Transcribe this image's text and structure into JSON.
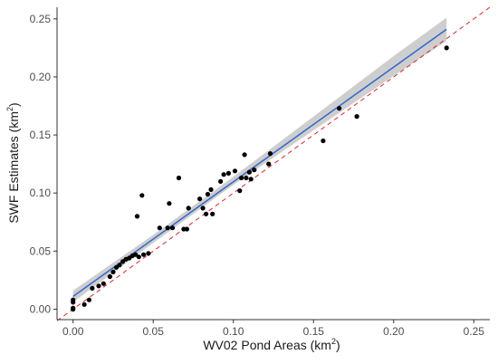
{
  "chart_data": {
    "type": "scatter",
    "xlabel": {
      "main": "WV02 Pond Areas (km",
      "sup": "2",
      "tail": ")"
    },
    "ylabel": {
      "main": "SWF Estimates (km",
      "sup": "2",
      "tail": ")"
    },
    "xlim": [
      -0.01,
      0.26
    ],
    "ylim": [
      -0.009,
      0.26
    ],
    "x_ticks": [
      0.0,
      0.05,
      0.1,
      0.15,
      0.2,
      0.25
    ],
    "x_tick_labels": [
      "0.00",
      "0.05",
      "0.10",
      "0.15",
      "0.20",
      "0.25"
    ],
    "y_ticks": [
      0.0,
      0.05,
      0.1,
      0.15,
      0.2,
      0.25
    ],
    "y_tick_labels": [
      "0.00",
      "0.05",
      "0.10",
      "0.15",
      "0.20",
      "0.25"
    ],
    "grid": false,
    "points": [
      [
        0.0,
        0.0
      ],
      [
        0.0,
        0.001
      ],
      [
        0.0,
        0.006
      ],
      [
        0.0,
        0.008
      ],
      [
        0.007,
        0.004
      ],
      [
        0.01,
        0.008
      ],
      [
        0.012,
        0.018
      ],
      [
        0.016,
        0.02
      ],
      [
        0.019,
        0.022
      ],
      [
        0.023,
        0.028
      ],
      [
        0.025,
        0.032
      ],
      [
        0.027,
        0.036
      ],
      [
        0.029,
        0.038
      ],
      [
        0.031,
        0.041
      ],
      [
        0.033,
        0.043
      ],
      [
        0.035,
        0.044
      ],
      [
        0.037,
        0.046
      ],
      [
        0.039,
        0.047
      ],
      [
        0.04,
        0.08
      ],
      [
        0.041,
        0.045
      ],
      [
        0.043,
        0.098
      ],
      [
        0.044,
        0.047
      ],
      [
        0.047,
        0.048
      ],
      [
        0.054,
        0.07
      ],
      [
        0.059,
        0.07
      ],
      [
        0.06,
        0.091
      ],
      [
        0.062,
        0.07
      ],
      [
        0.066,
        0.113
      ],
      [
        0.069,
        0.069
      ],
      [
        0.071,
        0.069
      ],
      [
        0.072,
        0.087
      ],
      [
        0.079,
        0.095
      ],
      [
        0.081,
        0.087
      ],
      [
        0.083,
        0.082
      ],
      [
        0.084,
        0.099
      ],
      [
        0.086,
        0.103
      ],
      [
        0.087,
        0.082
      ],
      [
        0.092,
        0.11
      ],
      [
        0.094,
        0.116
      ],
      [
        0.097,
        0.117
      ],
      [
        0.101,
        0.119
      ],
      [
        0.104,
        0.102
      ],
      [
        0.105,
        0.113
      ],
      [
        0.107,
        0.133
      ],
      [
        0.108,
        0.113
      ],
      [
        0.11,
        0.118
      ],
      [
        0.111,
        0.112
      ],
      [
        0.113,
        0.12
      ],
      [
        0.122,
        0.125
      ],
      [
        0.123,
        0.134
      ],
      [
        0.156,
        0.145
      ],
      [
        0.166,
        0.173
      ],
      [
        0.177,
        0.166
      ],
      [
        0.233,
        0.225
      ]
    ],
    "fit_line": {
      "x": [
        0.0,
        0.233
      ],
      "y": [
        0.011,
        0.241
      ],
      "color": "#3366cc"
    },
    "confidence_band": {
      "x": [
        0.0,
        0.05,
        0.1,
        0.15,
        0.2,
        0.233
      ],
      "lower": [
        0.006,
        0.057,
        0.107,
        0.154,
        0.201,
        0.231
      ],
      "upper": [
        0.016,
        0.064,
        0.114,
        0.166,
        0.218,
        0.251
      ],
      "color": "#bdbdbd"
    },
    "reference_line": {
      "x": [
        -0.01,
        0.26
      ],
      "y": [
        -0.01,
        0.26
      ],
      "color": "#d62728",
      "style": "dashed"
    },
    "point_color": "#000000"
  }
}
